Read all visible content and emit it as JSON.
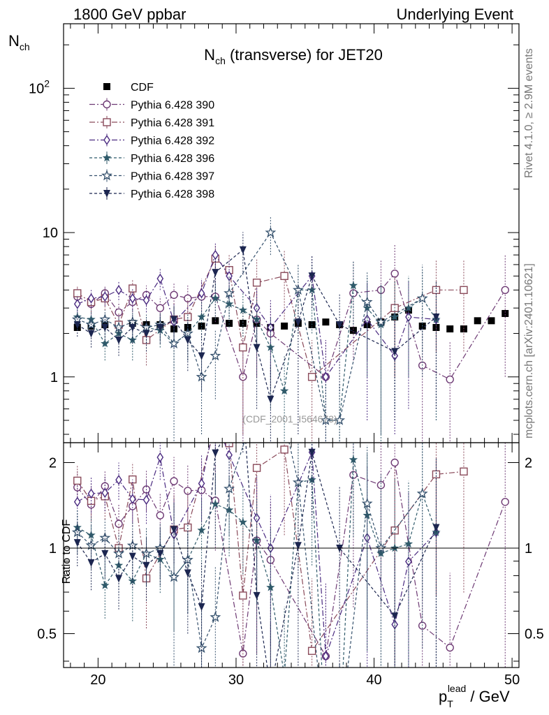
{
  "header": {
    "left": "1800 GeV ppbar",
    "right": "Underlying Event"
  },
  "side_labels": {
    "rivet": "Rivet 4.1.0, ≥ 2.9M events",
    "mcplots": "mcplots.cern.ch [arXiv:2401.10621]"
  },
  "chart_data": {
    "type": "line",
    "title_main": "N",
    "title_sub": "ch",
    "title_rest": " (transverse) for JET20",
    "ylabel_main": "N",
    "ylabel_sub": "ch",
    "ratio_ylabel": "Ratio to CDF",
    "xlabel_p": "p",
    "xlabel_sub": "T",
    "xlabel_sup": "lead",
    "xlabel_rest": " / GeV",
    "watermark": "(CDF_2001_I564673)",
    "xlim": [
      17.5,
      50.5
    ],
    "ylim_main": [
      0.35,
      280
    ],
    "ylim_ratio": [
      0.38,
      2.35
    ],
    "x_ticks": [
      "20",
      "30",
      "40",
      "50"
    ],
    "y_ticks_main": [
      "1",
      "10",
      "10^2"
    ],
    "y_ticks_ratio": [
      "0.5",
      "1",
      "2"
    ],
    "series": [
      {
        "name": "CDF",
        "color": "#000000",
        "marker": "square-filled",
        "dash": "none",
        "x": [
          18.5,
          19.5,
          20.5,
          21.5,
          22.5,
          23.5,
          24.5,
          25.5,
          26.5,
          27.5,
          28.5,
          29.5,
          30.5,
          31.5,
          32.5,
          33.5,
          34.5,
          35.5,
          36.5,
          37.5,
          38.5,
          39.5,
          40.5,
          41.5,
          42.5,
          43.5,
          44.5,
          45.5,
          46.5,
          47.5,
          48.5,
          49.5
        ],
        "y": [
          2.2,
          2.25,
          2.3,
          2.3,
          2.35,
          2.3,
          2.3,
          2.15,
          2.2,
          2.25,
          2.45,
          2.35,
          2.35,
          2.35,
          2.2,
          2.25,
          2.35,
          2.3,
          2.4,
          2.3,
          2.1,
          2.3,
          2.4,
          2.6,
          2.9,
          2.25,
          2.2,
          2.15,
          2.15,
          2.45,
          2.45,
          2.75
        ],
        "err": [
          0.08,
          0.08,
          0.08,
          0.08,
          0.08,
          0.08,
          0.08,
          0.08,
          0.08,
          0.08,
          0.08,
          0.08,
          0.08,
          0.08,
          0.08,
          0.08,
          0.08,
          0.08,
          0.08,
          0.08,
          0.08,
          0.08,
          0.08,
          0.08,
          0.08,
          0.08,
          0.08,
          0.08,
          0.08,
          0.08,
          0.08,
          0.08
        ]
      },
      {
        "name": "Pythia 6.428 390",
        "color": "#6e3a74",
        "marker": "circle-open",
        "dash": "8,3,2,3",
        "x": [
          18.5,
          19.5,
          20.5,
          21.5,
          22.5,
          23.5,
          24.5,
          25.5,
          26.5,
          27.5,
          28.5,
          30.5,
          31.5,
          32.5,
          36.5,
          38.5,
          40.5,
          41.5,
          43.5,
          45.5,
          49.5
        ],
        "y": [
          3.6,
          3.2,
          3.8,
          2.8,
          3.3,
          3.7,
          3.0,
          3.7,
          3.5,
          3.6,
          3.6,
          1.0,
          2.5,
          2.0,
          1.0,
          3.8,
          4.0,
          5.2,
          1.2,
          0.96,
          4.0
        ],
        "err": [
          0.5,
          0.5,
          0.5,
          0.5,
          0.5,
          0.6,
          0.6,
          0.8,
          0.8,
          1.0,
          1.2,
          0.8,
          1.5,
          1.2,
          0.8,
          2.5,
          2.5,
          3.0,
          1.0,
          0.8,
          3.0
        ]
      },
      {
        "name": "Pythia 6.428 391",
        "color": "#8a4a5a",
        "marker": "square-open",
        "dash": "8,3,2,3",
        "x": [
          18.5,
          19.5,
          20.5,
          21.5,
          22.5,
          23.5,
          25.5,
          26.5,
          28.5,
          29.5,
          30.5,
          31.5,
          33.5,
          35.5,
          41.5,
          44.5,
          46.5
        ],
        "y": [
          3.8,
          3.3,
          3.5,
          2.3,
          4.1,
          1.8,
          2.5,
          2.6,
          6.6,
          5.5,
          1.6,
          4.5,
          5.0,
          1.0,
          3.0,
          4.0,
          4.0
        ],
        "err": [
          0.5,
          0.5,
          0.6,
          0.5,
          0.6,
          0.6,
          0.8,
          0.9,
          1.5,
          1.5,
          1.2,
          2.0,
          2.5,
          0.8,
          2.0,
          2.5,
          2.5
        ]
      },
      {
        "name": "Pythia 6.428 392",
        "color": "#4a2a80",
        "marker": "diamond-open",
        "dash": "8,3,2,3",
        "x": [
          18.5,
          19.5,
          20.5,
          21.5,
          22.5,
          23.5,
          24.5,
          25.5,
          27.5,
          28.5,
          29.5,
          31.5,
          32.5,
          35.5,
          36.5,
          39.5,
          41.5,
          42.5,
          44.5
        ],
        "y": [
          3.2,
          3.5,
          3.6,
          4.0,
          3.5,
          3.4,
          4.8,
          2.4,
          3.8,
          7.0,
          5.0,
          3.0,
          2.2,
          5.0,
          1.0,
          2.5,
          1.4,
          2.6,
          2.5
        ],
        "err": [
          0.5,
          0.5,
          0.5,
          0.6,
          0.6,
          0.6,
          0.8,
          0.8,
          1.0,
          1.5,
          1.5,
          1.2,
          1.2,
          2.0,
          0.8,
          2.0,
          1.0,
          2.0,
          2.0
        ]
      },
      {
        "name": "Pythia 6.428 396",
        "color": "#2f5a6a",
        "marker": "star-filled",
        "dash": "4,3",
        "x": [
          18.5,
          19.5,
          20.5,
          21.5,
          22.5,
          23.5,
          24.5,
          25.5,
          26.5,
          27.5,
          28.5,
          29.5,
          30.5,
          31.5,
          32.5,
          33.5,
          34.5,
          35.5,
          36.5,
          37.5,
          38.5,
          39.5,
          40.5,
          41.5,
          42.5,
          43.5,
          44.5
        ],
        "y": [
          2.6,
          2.5,
          1.7,
          2.0,
          1.8,
          2.2,
          2.1,
          1.7,
          2.0,
          2.6,
          3.5,
          3.2,
          2.9,
          2.5,
          1.6,
          0.8,
          4.0,
          4.0,
          0.5,
          0.5,
          4.3,
          3.0,
          2.3,
          2.6,
          3.0,
          3.5,
          2.5
        ],
        "err": [
          0.4,
          0.4,
          0.4,
          0.4,
          0.5,
          0.5,
          0.5,
          0.6,
          0.7,
          0.8,
          1.0,
          1.0,
          1.0,
          1.0,
          1.0,
          0.6,
          2.0,
          2.0,
          0.4,
          0.4,
          2.0,
          2.0,
          2.0,
          2.0,
          2.0,
          2.0,
          2.0
        ]
      },
      {
        "name": "Pythia 6.428 397",
        "color": "#34506c",
        "marker": "star-open",
        "dash": "4,3",
        "x": [
          18.5,
          19.5,
          20.5,
          21.5,
          22.5,
          23.5,
          24.5,
          25.5,
          26.5,
          27.5,
          28.5,
          29.5,
          32.5,
          34.5,
          36.5,
          37.5,
          39.5,
          40.5,
          43.5
        ],
        "y": [
          2.5,
          2.3,
          2.5,
          2.2,
          2.4,
          2.2,
          2.3,
          1.7,
          2.0,
          1.0,
          1.4,
          3.8,
          10.0,
          4.0,
          0.5,
          0.5,
          3.3,
          2.4,
          3.5
        ],
        "err": [
          0.4,
          0.4,
          0.4,
          0.4,
          0.5,
          0.5,
          0.5,
          1.4,
          0.7,
          0.6,
          0.7,
          1.2,
          3.0,
          2.0,
          0.4,
          0.4,
          2.0,
          2.0,
          2.5
        ]
      },
      {
        "name": "Pythia 6.428 398",
        "color": "#1c2650",
        "marker": "triangle-down-filled",
        "dash": "4,3",
        "x": [
          18.5,
          19.5,
          20.5,
          21.5,
          22.5,
          23.5,
          24.5,
          25.5,
          26.5,
          27.5,
          28.5,
          30.5,
          31.5,
          32.5,
          34.5,
          35.5,
          37.5,
          41.5,
          44.5
        ],
        "y": [
          2.3,
          2.0,
          2.2,
          1.8,
          2.2,
          2.0,
          2.2,
          2.5,
          1.8,
          1.4,
          5.3,
          7.6,
          1.6,
          0.7,
          2.4,
          5.0,
          2.3,
          1.5,
          2.6
        ],
        "err": [
          0.4,
          0.4,
          0.4,
          0.4,
          0.5,
          0.5,
          0.5,
          0.6,
          0.7,
          0.6,
          1.5,
          2.5,
          1.0,
          0.5,
          2.0,
          2.0,
          1.5,
          1.0,
          2.0
        ]
      }
    ]
  }
}
